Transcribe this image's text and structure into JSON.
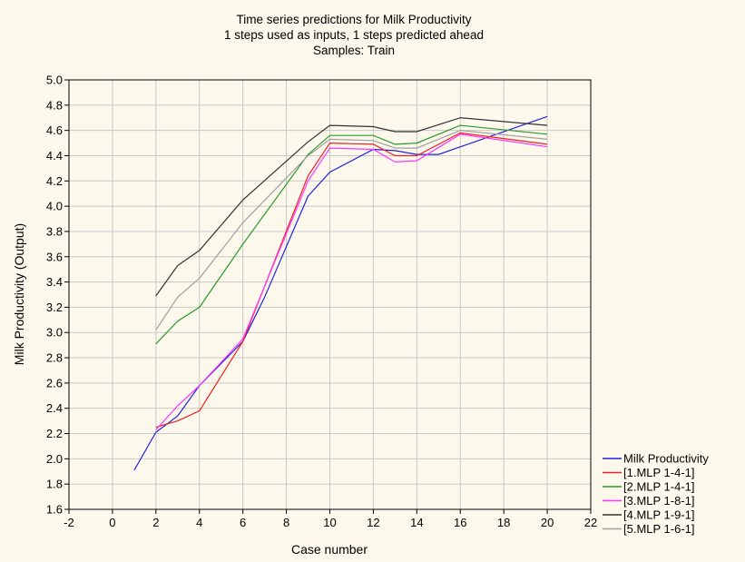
{
  "chart_data": {
    "type": "line",
    "title": [
      "Time series predictions for Milk Productivity",
      "1 steps used as inputs, 1 steps predicted ahead",
      "Samples: Train"
    ],
    "xlabel": "Case number",
    "ylabel": "Milk Productivity (Output)",
    "xlim": [
      -2,
      22
    ],
    "ylim": [
      1.6,
      5.0
    ],
    "xticks": [
      "-2",
      "0",
      "2",
      "4",
      "6",
      "8",
      "10",
      "12",
      "14",
      "16",
      "18",
      "20",
      "22"
    ],
    "yticks": [
      "1.6",
      "1.8",
      "2.0",
      "2.2",
      "2.4",
      "2.6",
      "2.8",
      "3.0",
      "3.2",
      "3.4",
      "3.6",
      "3.8",
      "4.0",
      "4.2",
      "4.4",
      "4.6",
      "4.8",
      "5.0"
    ],
    "grid": true,
    "legend_position": "bottom-right, outside plot",
    "series": [
      {
        "name": "Milk Productivity",
        "color": "#2222dd",
        "x": [
          1,
          2,
          3,
          4,
          6,
          7,
          9,
          10,
          12,
          13,
          14,
          15,
          16,
          20
        ],
        "y": [
          1.91,
          2.21,
          2.34,
          2.58,
          2.93,
          3.28,
          4.08,
          4.27,
          4.45,
          4.44,
          4.41,
          4.41,
          4.47,
          4.71
        ]
      },
      {
        "name": "[1.MLP 1-4-1]",
        "color": "#ee2222",
        "x": [
          2,
          3,
          4,
          6,
          9,
          10,
          12,
          13,
          14,
          16,
          20
        ],
        "y": [
          2.25,
          2.3,
          2.38,
          2.93,
          4.24,
          4.5,
          4.49,
          4.4,
          4.4,
          4.58,
          4.49
        ]
      },
      {
        "name": "[2.MLP 1-4-1]",
        "color": "#2a9a2a",
        "x": [
          2,
          3,
          4,
          6,
          9,
          10,
          12,
          13,
          14,
          16,
          20
        ],
        "y": [
          2.91,
          3.09,
          3.2,
          3.7,
          4.41,
          4.56,
          4.56,
          4.49,
          4.5,
          4.64,
          4.57
        ]
      },
      {
        "name": "[3.MLP 1-8-1]",
        "color": "#ff33ff",
        "x": [
          2,
          3,
          4,
          6,
          9,
          10,
          12,
          13,
          14,
          16,
          20
        ],
        "y": [
          2.23,
          2.42,
          2.58,
          2.95,
          4.2,
          4.46,
          4.45,
          4.35,
          4.36,
          4.57,
          4.47
        ]
      },
      {
        "name": "[4.MLP 1-9-1]",
        "color": "#333333",
        "x": [
          2,
          3,
          4,
          6,
          9,
          10,
          12,
          13,
          14,
          16,
          20
        ],
        "y": [
          3.29,
          3.53,
          3.65,
          4.05,
          4.51,
          4.64,
          4.63,
          4.59,
          4.59,
          4.7,
          4.64
        ]
      },
      {
        "name": "[5.MLP 1-6-1]",
        "color": "#a0a0a0",
        "x": [
          2,
          3,
          4,
          6,
          9,
          10,
          12,
          13,
          14,
          16,
          20
        ],
        "y": [
          3.02,
          3.28,
          3.43,
          3.87,
          4.4,
          4.53,
          4.52,
          4.46,
          4.46,
          4.6,
          4.53
        ]
      }
    ]
  }
}
